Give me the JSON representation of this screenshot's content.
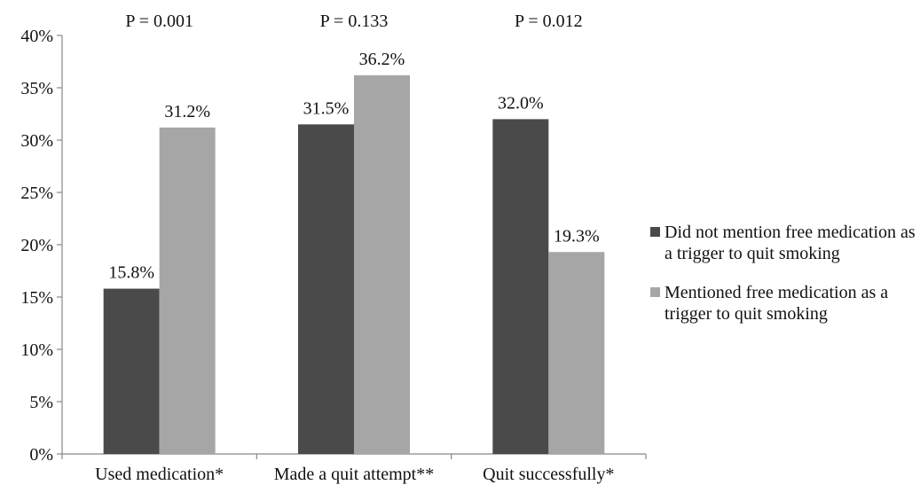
{
  "chart_data": {
    "type": "bar",
    "categories": [
      "Used medication*",
      "Made a quit attempt**",
      "Quit successfully*"
    ],
    "series": [
      {
        "name": "Did not mention free medication as a trigger to quit smoking",
        "color": "#4a4a4a",
        "values": [
          15.8,
          31.5,
          32.0
        ],
        "labels": [
          "15.8%",
          "31.5%",
          "32.0%"
        ]
      },
      {
        "name": "Mentioned free medication as a trigger to quit smoking",
        "color": "#a6a6a6",
        "values": [
          31.2,
          36.2,
          19.3
        ],
        "labels": [
          "31.2%",
          "36.2%",
          "19.3%"
        ]
      }
    ],
    "annotations": [
      "P = 0.001",
      "P = 0.133",
      "P = 0.012"
    ],
    "ylim": [
      0,
      40
    ],
    "yticks": [
      "0%",
      "5%",
      "10%",
      "15%",
      "20%",
      "25%",
      "30%",
      "35%",
      "40%"
    ],
    "xlabel": "",
    "ylabel": "",
    "grid": false,
    "legend_position": "right"
  }
}
